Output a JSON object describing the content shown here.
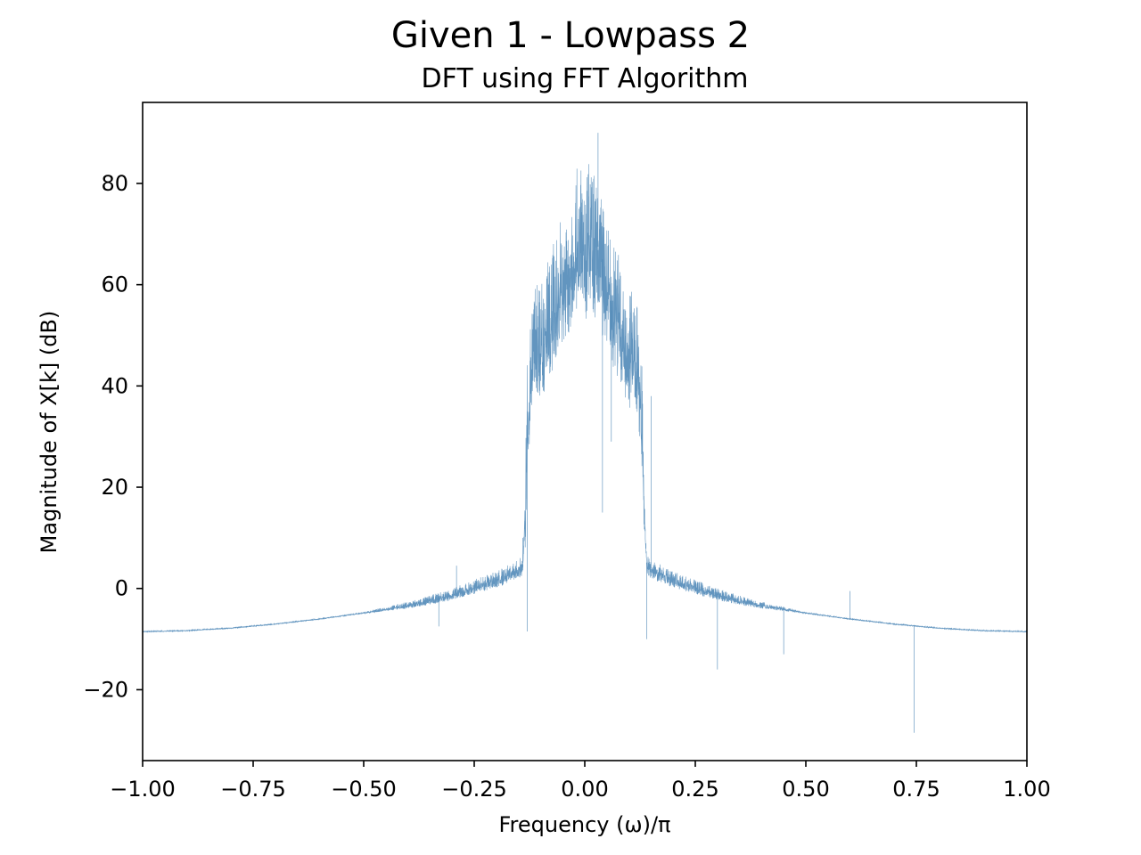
{
  "chart_data": {
    "type": "line",
    "title": "Given 1 - Lowpass 2",
    "subtitle": "DFT using FFT Algorithm",
    "xlabel": "Frequency (ω)/π",
    "ylabel": "Magnitude of X[k] (dB)",
    "xlim": [
      -1.0,
      1.0
    ],
    "ylim": [
      -34,
      96
    ],
    "grid": false,
    "line_color": "#4682b4",
    "x_ticks": [
      -1.0,
      -0.75,
      -0.5,
      -0.25,
      0.0,
      0.25,
      0.5,
      0.75,
      1.0
    ],
    "x_tick_labels": [
      "−1.00",
      "−0.75",
      "−0.50",
      "−0.25",
      "0.00",
      "0.25",
      "0.50",
      "0.75",
      "1.00"
    ],
    "y_ticks": [
      -20,
      0,
      20,
      40,
      60,
      80
    ],
    "y_tick_labels": [
      "−20",
      "0",
      "20",
      "40",
      "60",
      "80"
    ],
    "series": [
      {
        "x": [
          -1.0,
          -0.9,
          -0.8,
          -0.7,
          -0.6,
          -0.5,
          -0.45,
          -0.4,
          -0.35,
          -0.3,
          -0.25,
          -0.2,
          -0.15,
          -0.14,
          -0.135,
          -0.13,
          -0.12,
          -0.11,
          -0.1,
          -0.08,
          -0.06,
          -0.04,
          -0.02,
          -0.01,
          0.0,
          0.01,
          0.02,
          0.04,
          0.06,
          0.08,
          0.1,
          0.11,
          0.12,
          0.13,
          0.135,
          0.14,
          0.15,
          0.2,
          0.25,
          0.3,
          0.35,
          0.4,
          0.45,
          0.5,
          0.6,
          0.7,
          0.8,
          0.9,
          1.0
        ],
        "y": [
          -8.5,
          -8.3,
          -7.8,
          -7.0,
          -6.0,
          -4.8,
          -4.0,
          -3.2,
          -2.2,
          -1.0,
          0.5,
          2.0,
          4.0,
          5.0,
          15.0,
          35.0,
          47.0,
          52.0,
          50.0,
          55.0,
          60.0,
          65.0,
          70.0,
          72.0,
          68.0,
          72.0,
          70.0,
          65.0,
          58.0,
          55.0,
          48.0,
          50.0,
          46.0,
          35.0,
          15.0,
          5.0,
          4.0,
          2.0,
          0.5,
          -1.0,
          -2.2,
          -3.2,
          -4.0,
          -4.8,
          -6.0,
          -7.0,
          -7.8,
          -8.3,
          -8.5
        ]
      }
    ],
    "spikes": [
      {
        "x": -0.14,
        "y": 10.0
      },
      {
        "x": -0.13,
        "y": -8.5
      },
      {
        "x": -0.29,
        "y": 4.5
      },
      {
        "x": -0.33,
        "y": -7.5
      },
      {
        "x": 0.03,
        "y": 90.0
      },
      {
        "x": 0.04,
        "y": 15.0
      },
      {
        "x": 0.06,
        "y": 29.0
      },
      {
        "x": 0.15,
        "y": 38.0
      },
      {
        "x": 0.14,
        "y": -10.0
      },
      {
        "x": 0.3,
        "y": -16.0
      },
      {
        "x": 0.45,
        "y": -13.0
      },
      {
        "x": 0.6,
        "y": -0.5
      },
      {
        "x": 0.745,
        "y": -28.5
      }
    ]
  }
}
